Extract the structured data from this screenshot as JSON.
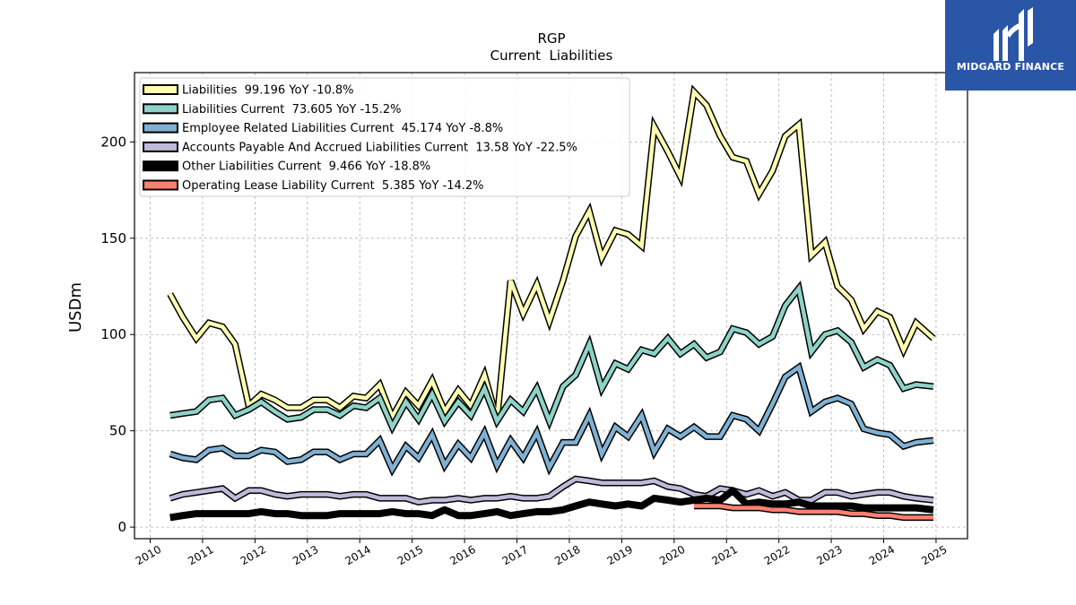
{
  "chart_data": {
    "type": "line",
    "title": "RGP",
    "subtitle": "Current  Liabilities",
    "ylabel": "USDm",
    "xlabel": "",
    "xlim": [
      2009.7,
      2025.6
    ],
    "ylim": [
      -6,
      236
    ],
    "yticks": [
      0,
      50,
      100,
      150,
      200
    ],
    "xticks": [
      "2010",
      "2011",
      "2012",
      "2013",
      "2014",
      "2015",
      "2016",
      "2017",
      "2018",
      "2019",
      "2020",
      "2021",
      "2022",
      "2023",
      "2024",
      "2025"
    ],
    "grid": true,
    "legend_position": "top-left",
    "series": [
      {
        "name": "Liabilities  99.196 YoY -10.8%",
        "color": "#ffffb3",
        "x": [
          2010.38,
          2010.62,
          2010.88,
          2011.12,
          2011.38,
          2011.62,
          2011.88,
          2012.12,
          2012.38,
          2012.62,
          2012.88,
          2013.12,
          2013.38,
          2013.62,
          2013.88,
          2014.12,
          2014.38,
          2014.62,
          2014.88,
          2015.12,
          2015.38,
          2015.62,
          2015.88,
          2016.12,
          2016.38,
          2016.62,
          2016.88,
          2017.12,
          2017.38,
          2017.62,
          2017.88,
          2018.12,
          2018.38,
          2018.62,
          2018.88,
          2019.12,
          2019.38,
          2019.62,
          2019.88,
          2020.12,
          2020.38,
          2020.62,
          2020.88,
          2021.12,
          2021.38,
          2021.62,
          2021.88,
          2022.12,
          2022.38,
          2022.62,
          2022.88,
          2023.12,
          2023.38,
          2023.62,
          2023.88,
          2024.12,
          2024.38,
          2024.62,
          2024.95
        ],
        "values": [
          121,
          109,
          98,
          106,
          104,
          95,
          63,
          69,
          66,
          62,
          62,
          66,
          66,
          62,
          68,
          67,
          74,
          57,
          70,
          63,
          76,
          60,
          71,
          63,
          79,
          56,
          128,
          111,
          126,
          107,
          128,
          151,
          164,
          140,
          154,
          152,
          146,
          208,
          195,
          182,
          226,
          219,
          203,
          192,
          190,
          173,
          185,
          203,
          209,
          141,
          148,
          125,
          118,
          103,
          112,
          109,
          92,
          106,
          98
        ]
      },
      {
        "name": "Liabilities Current  73.605 YoY -15.2%",
        "color": "#8dd3c7",
        "x": [
          2010.38,
          2010.62,
          2010.88,
          2011.12,
          2011.38,
          2011.62,
          2011.88,
          2012.12,
          2012.38,
          2012.62,
          2012.88,
          2013.12,
          2013.38,
          2013.62,
          2013.88,
          2014.12,
          2014.38,
          2014.62,
          2014.88,
          2015.12,
          2015.38,
          2015.62,
          2015.88,
          2016.12,
          2016.38,
          2016.62,
          2016.88,
          2017.12,
          2017.38,
          2017.62,
          2017.88,
          2018.12,
          2018.38,
          2018.62,
          2018.88,
          2019.12,
          2019.38,
          2019.62,
          2019.88,
          2020.12,
          2020.38,
          2020.62,
          2020.88,
          2021.12,
          2021.38,
          2021.62,
          2021.88,
          2022.12,
          2022.38,
          2022.62,
          2022.88,
          2023.12,
          2023.38,
          2023.62,
          2023.88,
          2024.12,
          2024.38,
          2024.62,
          2024.95
        ],
        "values": [
          58,
          59,
          60,
          66,
          67,
          58,
          61,
          65,
          60,
          56,
          57,
          61,
          61,
          58,
          63,
          62,
          67,
          52,
          65,
          56,
          69,
          55,
          65,
          58,
          72,
          55,
          66,
          60,
          72,
          55,
          73,
          79,
          95,
          72,
          85,
          82,
          92,
          90,
          98,
          90,
          95,
          88,
          91,
          103,
          101,
          95,
          99,
          115,
          124,
          91,
          100,
          102,
          96,
          83,
          87,
          84,
          72,
          74,
          73
        ]
      },
      {
        "name": "Employee Related Liabilities Current  45.174 YoY -8.8%",
        "color": "#80b1d3",
        "x": [
          2010.38,
          2010.62,
          2010.88,
          2011.12,
          2011.38,
          2011.62,
          2011.88,
          2012.12,
          2012.38,
          2012.62,
          2012.88,
          2013.12,
          2013.38,
          2013.62,
          2013.88,
          2014.12,
          2014.38,
          2014.62,
          2014.88,
          2015.12,
          2015.38,
          2015.62,
          2015.88,
          2016.12,
          2016.38,
          2016.62,
          2016.88,
          2017.12,
          2017.38,
          2017.62,
          2017.88,
          2018.12,
          2018.38,
          2018.62,
          2018.88,
          2019.12,
          2019.38,
          2019.62,
          2019.88,
          2020.12,
          2020.38,
          2020.62,
          2020.88,
          2021.12,
          2021.38,
          2021.62,
          2021.88,
          2022.12,
          2022.38,
          2022.62,
          2022.88,
          2023.12,
          2023.38,
          2023.62,
          2023.88,
          2024.12,
          2024.38,
          2024.62,
          2024.95
        ],
        "values": [
          38,
          36,
          35,
          40,
          41,
          37,
          37,
          40,
          39,
          34,
          35,
          39,
          39,
          35,
          38,
          38,
          45,
          30,
          42,
          36,
          48,
          32,
          43,
          36,
          49,
          32,
          45,
          36,
          49,
          31,
          44,
          44,
          58,
          38,
          52,
          47,
          58,
          39,
          51,
          47,
          52,
          47,
          47,
          58,
          56,
          50,
          64,
          78,
          83,
          60,
          65,
          67,
          64,
          51,
          49,
          48,
          42,
          44,
          45
        ]
      },
      {
        "name": "Accounts Payable And Accrued Liabilities Current  13.58 YoY -22.5%",
        "color": "#bebada",
        "x": [
          2010.38,
          2010.62,
          2010.88,
          2011.12,
          2011.38,
          2011.62,
          2011.88,
          2012.12,
          2012.38,
          2012.62,
          2012.88,
          2013.12,
          2013.38,
          2013.62,
          2013.88,
          2014.12,
          2014.38,
          2014.62,
          2014.88,
          2015.12,
          2015.38,
          2015.62,
          2015.88,
          2016.12,
          2016.38,
          2016.62,
          2016.88,
          2017.12,
          2017.38,
          2017.62,
          2017.88,
          2018.12,
          2018.38,
          2018.62,
          2018.88,
          2019.12,
          2019.38,
          2019.62,
          2019.88,
          2020.12,
          2020.38,
          2020.62,
          2020.88,
          2021.12,
          2021.38,
          2021.62,
          2021.88,
          2022.12,
          2022.38,
          2022.62,
          2022.88,
          2023.12,
          2023.38,
          2023.62,
          2023.88,
          2024.12,
          2024.38,
          2024.62,
          2024.95
        ],
        "values": [
          15,
          17,
          18,
          19,
          20,
          15,
          19,
          19,
          17,
          16,
          17,
          17,
          17,
          16,
          17,
          17,
          15,
          15,
          15,
          13,
          14,
          14,
          15,
          14,
          15,
          15,
          16,
          15,
          15,
          16,
          21,
          25,
          24,
          23,
          23,
          23,
          23,
          24,
          21,
          20,
          17,
          16,
          20,
          19,
          17,
          19,
          16,
          18,
          14,
          14,
          18,
          18,
          16,
          17,
          18,
          18,
          16,
          15,
          14
        ]
      },
      {
        "name": "Other Liabilities Current  9.466 YoY -18.8%",
        "color": "#000000",
        "x": [
          2010.38,
          2010.62,
          2010.88,
          2011.12,
          2011.38,
          2011.62,
          2011.88,
          2012.12,
          2012.38,
          2012.62,
          2012.88,
          2013.12,
          2013.38,
          2013.62,
          2013.88,
          2014.12,
          2014.38,
          2014.62,
          2014.88,
          2015.12,
          2015.38,
          2015.62,
          2015.88,
          2016.12,
          2016.38,
          2016.62,
          2016.88,
          2017.12,
          2017.38,
          2017.62,
          2017.88,
          2018.12,
          2018.38,
          2018.62,
          2018.88,
          2019.12,
          2019.38,
          2019.62,
          2019.88,
          2020.12,
          2020.38,
          2020.62,
          2020.88,
          2021.12,
          2021.38,
          2021.62,
          2021.88,
          2022.12,
          2022.38,
          2022.62,
          2022.88,
          2023.12,
          2023.38,
          2023.62,
          2023.88,
          2024.12,
          2024.38,
          2024.62,
          2024.95
        ],
        "values": [
          5,
          6,
          7,
          7,
          7,
          7,
          7,
          8,
          7,
          7,
          6,
          6,
          6,
          7,
          7,
          7,
          7,
          8,
          7,
          7,
          6,
          9,
          6,
          6,
          7,
          8,
          6,
          7,
          8,
          8,
          9,
          11,
          13,
          12,
          11,
          12,
          11,
          15,
          14,
          13,
          14,
          15,
          14,
          19,
          12,
          13,
          12,
          12,
          13,
          11,
          11,
          11,
          11,
          10,
          10,
          10,
          10,
          10,
          9
        ]
      },
      {
        "name": "Operating Lease Liability Current  5.385 YoY -14.2%",
        "color": "#fb8072",
        "x": [
          2020.38,
          2020.62,
          2020.88,
          2021.12,
          2021.38,
          2021.62,
          2021.88,
          2022.12,
          2022.38,
          2022.62,
          2022.88,
          2023.12,
          2023.38,
          2023.62,
          2023.88,
          2024.12,
          2024.38,
          2024.62,
          2024.95
        ],
        "values": [
          11,
          11,
          11,
          10,
          10,
          10,
          9,
          9,
          8,
          8,
          8,
          8,
          7,
          7,
          6,
          6,
          5,
          5,
          5
        ]
      }
    ]
  },
  "logo": {
    "text": "MIDGARD FINANCE"
  }
}
